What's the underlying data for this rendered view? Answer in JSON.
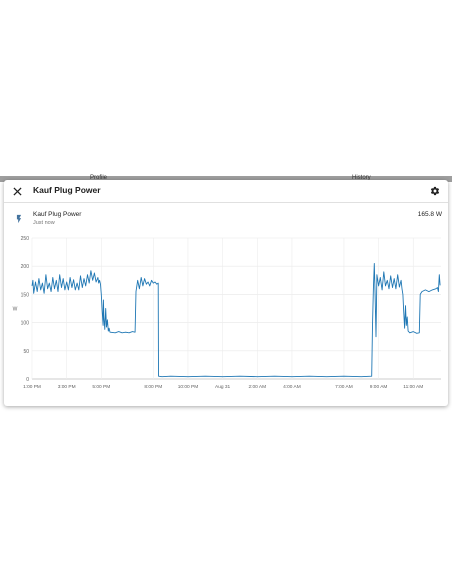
{
  "backdrop": {
    "left_text": "Profile",
    "right_text": "History"
  },
  "dialog": {
    "title": "Kauf Plug Power",
    "close_icon": "close-icon",
    "settings_icon": "gear-icon"
  },
  "entity": {
    "icon": "flash-icon",
    "name": "Kauf Plug Power",
    "last_changed": "Just now",
    "state": "165.8 W"
  },
  "chart_data": {
    "type": "line",
    "ylabel": "W",
    "ylim": [
      0,
      250
    ],
    "y_ticks": [
      0,
      50,
      100,
      150,
      200,
      250
    ],
    "x_unit": "hours since 1:00 PM (Aug 30)",
    "xlim": [
      0,
      23.6
    ],
    "x_ticks": [
      {
        "t": 0,
        "label": "1:00 PM"
      },
      {
        "t": 2,
        "label": "3:00 PM"
      },
      {
        "t": 4,
        "label": "5:00 PM"
      },
      {
        "t": 7,
        "label": "8:00 PM"
      },
      {
        "t": 9,
        "label": "10:00 PM"
      },
      {
        "t": 11,
        "label": "Aug 31"
      },
      {
        "t": 13,
        "label": "2:00 AM"
      },
      {
        "t": 15,
        "label": "4:00 AM"
      },
      {
        "t": 18,
        "label": "7:00 AM"
      },
      {
        "t": 20,
        "label": "9:00 AM"
      },
      {
        "t": 22,
        "label": "11:00 AM"
      }
    ],
    "color": "#1f77b4",
    "series": [
      {
        "name": "Kauf Plug Power",
        "points": [
          [
            0.0,
            165
          ],
          [
            0.05,
            175
          ],
          [
            0.1,
            152
          ],
          [
            0.2,
            172
          ],
          [
            0.3,
            155
          ],
          [
            0.4,
            178
          ],
          [
            0.5,
            158
          ],
          [
            0.6,
            170
          ],
          [
            0.7,
            152
          ],
          [
            0.8,
            185
          ],
          [
            0.9,
            160
          ],
          [
            1.0,
            170
          ],
          [
            1.1,
            155
          ],
          [
            1.2,
            180
          ],
          [
            1.3,
            160
          ],
          [
            1.4,
            175
          ],
          [
            1.5,
            155
          ],
          [
            1.6,
            185
          ],
          [
            1.7,
            162
          ],
          [
            1.8,
            178
          ],
          [
            1.9,
            158
          ],
          [
            2.0,
            172
          ],
          [
            2.1,
            158
          ],
          [
            2.2,
            180
          ],
          [
            2.3,
            162
          ],
          [
            2.4,
            176
          ],
          [
            2.5,
            158
          ],
          [
            2.6,
            170
          ],
          [
            2.7,
            158
          ],
          [
            2.8,
            183
          ],
          [
            2.9,
            162
          ],
          [
            3.0,
            178
          ],
          [
            3.1,
            165
          ],
          [
            3.2,
            185
          ],
          [
            3.3,
            170
          ],
          [
            3.4,
            192
          ],
          [
            3.5,
            175
          ],
          [
            3.6,
            188
          ],
          [
            3.7,
            172
          ],
          [
            3.8,
            180
          ],
          [
            3.85,
            170
          ],
          [
            3.9,
            175
          ],
          [
            3.95,
            168
          ],
          [
            4.0,
            150
          ],
          [
            4.05,
            120
          ],
          [
            4.1,
            95
          ],
          [
            4.12,
            140
          ],
          [
            4.15,
            110
          ],
          [
            4.2,
            88
          ],
          [
            4.25,
            125
          ],
          [
            4.3,
            92
          ],
          [
            4.35,
            105
          ],
          [
            4.4,
            85
          ],
          [
            4.45,
            90
          ],
          [
            4.5,
            83
          ],
          [
            4.8,
            82
          ],
          [
            5.0,
            84
          ],
          [
            5.2,
            82
          ],
          [
            5.4,
            83
          ],
          [
            5.6,
            82
          ],
          [
            5.8,
            84
          ],
          [
            5.95,
            83
          ],
          [
            6.0,
            155
          ],
          [
            6.1,
            175
          ],
          [
            6.2,
            160
          ],
          [
            6.3,
            180
          ],
          [
            6.4,
            165
          ],
          [
            6.5,
            178
          ],
          [
            6.6,
            168
          ],
          [
            6.7,
            172
          ],
          [
            6.8,
            165
          ],
          [
            6.9,
            175
          ],
          [
            7.0,
            170
          ],
          [
            7.1,
            172
          ],
          [
            7.2,
            168
          ],
          [
            7.28,
            170
          ],
          [
            7.3,
            5
          ],
          [
            7.5,
            4
          ],
          [
            8.0,
            5
          ],
          [
            9.0,
            4
          ],
          [
            10.0,
            5
          ],
          [
            11.0,
            4
          ],
          [
            12.0,
            5
          ],
          [
            13.0,
            4
          ],
          [
            14.0,
            5
          ],
          [
            15.0,
            4
          ],
          [
            16.0,
            5
          ],
          [
            17.0,
            4
          ],
          [
            18.0,
            5
          ],
          [
            19.0,
            4
          ],
          [
            19.6,
            5
          ],
          [
            19.65,
            95
          ],
          [
            19.7,
            160
          ],
          [
            19.75,
            205
          ],
          [
            19.8,
            150
          ],
          [
            19.85,
            75
          ],
          [
            19.9,
            185
          ],
          [
            20.0,
            165
          ],
          [
            20.1,
            180
          ],
          [
            20.2,
            158
          ],
          [
            20.3,
            190
          ],
          [
            20.4,
            165
          ],
          [
            20.5,
            175
          ],
          [
            20.6,
            160
          ],
          [
            20.7,
            183
          ],
          [
            20.8,
            162
          ],
          [
            20.9,
            178
          ],
          [
            21.0,
            160
          ],
          [
            21.1,
            185
          ],
          [
            21.2,
            163
          ],
          [
            21.3,
            175
          ],
          [
            21.35,
            160
          ],
          [
            21.4,
            150
          ],
          [
            21.45,
            120
          ],
          [
            21.5,
            90
          ],
          [
            21.55,
            130
          ],
          [
            21.6,
            95
          ],
          [
            21.65,
            110
          ],
          [
            21.7,
            85
          ],
          [
            21.8,
            82
          ],
          [
            22.0,
            84
          ],
          [
            22.2,
            81
          ],
          [
            22.35,
            82
          ],
          [
            22.4,
            150
          ],
          [
            22.5,
            155
          ],
          [
            22.7,
            158
          ],
          [
            22.9,
            155
          ],
          [
            23.1,
            158
          ],
          [
            23.3,
            160
          ],
          [
            23.4,
            162
          ],
          [
            23.45,
            155
          ],
          [
            23.5,
            185
          ],
          [
            23.55,
            166
          ]
        ]
      }
    ]
  }
}
